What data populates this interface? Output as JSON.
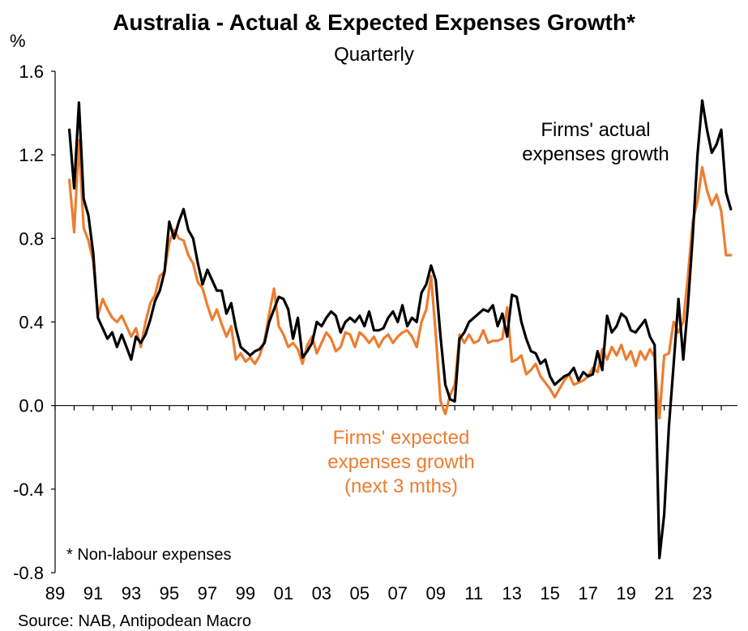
{
  "chart_data": {
    "type": "line",
    "title": "Australia - Actual & Expected Expenses Growth*",
    "subtitle": "Quarterly",
    "ylabel": "%",
    "ylim": [
      -0.8,
      1.6
    ],
    "xlim": [
      1989,
      2024.85
    ],
    "yticks": [
      "1.6",
      "1.2",
      "0.8",
      "0.4",
      "0.0",
      "-0.4",
      "-0.8"
    ],
    "ytick_values": [
      1.6,
      1.2,
      0.8,
      0.4,
      0.0,
      -0.4,
      -0.8
    ],
    "xticks": [
      "89",
      "91",
      "93",
      "95",
      "97",
      "99",
      "01",
      "03",
      "05",
      "07",
      "09",
      "11",
      "13",
      "15",
      "17",
      "19",
      "21",
      "23"
    ],
    "xtick_values": [
      1989,
      1991,
      1993,
      1995,
      1997,
      1999,
      2001,
      2003,
      2005,
      2007,
      2009,
      2011,
      2013,
      2015,
      2017,
      2019,
      2021,
      2023
    ],
    "grid": false,
    "series": [
      {
        "name": "Firms' actual expenses growth",
        "color": "#000000",
        "x": [
          1989.75,
          1990.0,
          1990.25,
          1990.5,
          1990.75,
          1991.0,
          1991.25,
          1991.5,
          1991.75,
          1992.0,
          1992.25,
          1992.5,
          1992.75,
          1993.0,
          1993.25,
          1993.5,
          1993.75,
          1994.0,
          1994.25,
          1994.5,
          1994.75,
          1995.0,
          1995.25,
          1995.5,
          1995.75,
          1996.0,
          1996.25,
          1996.5,
          1996.75,
          1997.0,
          1997.25,
          1997.5,
          1997.75,
          1998.0,
          1998.25,
          1998.5,
          1998.75,
          1999.0,
          1999.25,
          1999.5,
          1999.75,
          2000.0,
          2000.25,
          2000.5,
          2000.75,
          2001.0,
          2001.25,
          2001.5,
          2001.75,
          2002.0,
          2002.25,
          2002.5,
          2002.75,
          2003.0,
          2003.25,
          2003.5,
          2003.75,
          2004.0,
          2004.25,
          2004.5,
          2004.75,
          2005.0,
          2005.25,
          2005.5,
          2005.75,
          2006.0,
          2006.25,
          2006.5,
          2006.75,
          2007.0,
          2007.25,
          2007.5,
          2007.75,
          2008.0,
          2008.25,
          2008.5,
          2008.75,
          2009.0,
          2009.25,
          2009.5,
          2009.75,
          2010.0,
          2010.25,
          2010.5,
          2010.75,
          2011.0,
          2011.25,
          2011.5,
          2011.75,
          2012.0,
          2012.25,
          2012.5,
          2012.75,
          2013.0,
          2013.25,
          2013.5,
          2013.75,
          2014.0,
          2014.25,
          2014.5,
          2014.75,
          2015.0,
          2015.25,
          2015.5,
          2015.75,
          2016.0,
          2016.25,
          2016.5,
          2016.75,
          2017.0,
          2017.25,
          2017.5,
          2017.75,
          2018.0,
          2018.25,
          2018.5,
          2018.75,
          2019.0,
          2019.25,
          2019.5,
          2019.75,
          2020.0,
          2020.25,
          2020.5,
          2020.75,
          2021.0,
          2021.25,
          2021.5,
          2021.75,
          2022.0,
          2022.25,
          2022.5,
          2022.75,
          2023.0,
          2023.25,
          2023.5,
          2023.75,
          2024.0,
          2024.25,
          2024.5
        ],
        "values": [
          1.32,
          1.04,
          1.45,
          0.99,
          0.91,
          0.73,
          0.42,
          0.37,
          0.32,
          0.35,
          0.28,
          0.34,
          0.28,
          0.22,
          0.33,
          0.3,
          0.34,
          0.41,
          0.5,
          0.55,
          0.64,
          0.88,
          0.8,
          0.88,
          0.94,
          0.84,
          0.8,
          0.68,
          0.58,
          0.65,
          0.6,
          0.55,
          0.55,
          0.44,
          0.49,
          0.37,
          0.28,
          0.26,
          0.24,
          0.26,
          0.27,
          0.3,
          0.4,
          0.46,
          0.52,
          0.51,
          0.46,
          0.32,
          0.42,
          0.23,
          0.26,
          0.3,
          0.4,
          0.38,
          0.42,
          0.45,
          0.43,
          0.35,
          0.4,
          0.42,
          0.4,
          0.43,
          0.38,
          0.45,
          0.36,
          0.36,
          0.37,
          0.42,
          0.45,
          0.4,
          0.48,
          0.38,
          0.42,
          0.4,
          0.54,
          0.58,
          0.67,
          0.6,
          0.33,
          0.1,
          0.03,
          0.02,
          0.32,
          0.35,
          0.4,
          0.42,
          0.44,
          0.46,
          0.45,
          0.48,
          0.38,
          0.44,
          0.33,
          0.53,
          0.52,
          0.4,
          0.32,
          0.26,
          0.25,
          0.2,
          0.22,
          0.14,
          0.1,
          0.12,
          0.14,
          0.15,
          0.18,
          0.12,
          0.16,
          0.14,
          0.15,
          0.26,
          0.17,
          0.43,
          0.35,
          0.38,
          0.44,
          0.42,
          0.36,
          0.35,
          0.38,
          0.41,
          0.33,
          0.29,
          -0.73,
          -0.52,
          -0.1,
          0.2,
          0.51,
          0.22,
          0.48,
          0.81,
          1.2,
          1.46,
          1.32,
          1.21,
          1.25,
          1.32,
          1.02,
          0.94
        ]
      },
      {
        "name": "Firms' expected expenses growth (next 3 mths)",
        "color": "#ED7D31",
        "x": [
          1989.75,
          1990.0,
          1990.25,
          1990.5,
          1990.75,
          1991.0,
          1991.25,
          1991.5,
          1991.75,
          1992.0,
          1992.25,
          1992.5,
          1992.75,
          1993.0,
          1993.25,
          1993.5,
          1993.75,
          1994.0,
          1994.25,
          1994.5,
          1994.75,
          1995.0,
          1995.25,
          1995.5,
          1995.75,
          1996.0,
          1996.25,
          1996.5,
          1996.75,
          1997.0,
          1997.25,
          1997.5,
          1997.75,
          1998.0,
          1998.25,
          1998.5,
          1998.75,
          1999.0,
          1999.25,
          1999.5,
          1999.75,
          2000.0,
          2000.25,
          2000.5,
          2000.75,
          2001.0,
          2001.25,
          2001.5,
          2001.75,
          2002.0,
          2002.25,
          2002.5,
          2002.75,
          2003.0,
          2003.25,
          2003.5,
          2003.75,
          2004.0,
          2004.25,
          2004.5,
          2004.75,
          2005.0,
          2005.25,
          2005.5,
          2005.75,
          2006.0,
          2006.25,
          2006.5,
          2006.75,
          2007.0,
          2007.25,
          2007.5,
          2007.75,
          2008.0,
          2008.25,
          2008.5,
          2008.75,
          2009.0,
          2009.25,
          2009.5,
          2009.75,
          2010.0,
          2010.25,
          2010.5,
          2010.75,
          2011.0,
          2011.25,
          2011.5,
          2011.75,
          2012.0,
          2012.25,
          2012.5,
          2012.75,
          2013.0,
          2013.25,
          2013.5,
          2013.75,
          2014.0,
          2014.25,
          2014.5,
          2014.75,
          2015.0,
          2015.25,
          2015.5,
          2015.75,
          2016.0,
          2016.25,
          2016.5,
          2016.75,
          2017.0,
          2017.25,
          2017.5,
          2017.75,
          2018.0,
          2018.25,
          2018.5,
          2018.75,
          2019.0,
          2019.25,
          2019.5,
          2019.75,
          2020.0,
          2020.25,
          2020.5,
          2020.75,
          2021.0,
          2021.25,
          2021.5,
          2021.75,
          2022.0,
          2022.25,
          2022.5,
          2022.75,
          2023.0,
          2023.25,
          2023.5,
          2023.75,
          2024.0,
          2024.25,
          2024.5
        ],
        "values": [
          1.08,
          0.83,
          1.27,
          0.85,
          0.79,
          0.69,
          0.43,
          0.51,
          0.46,
          0.42,
          0.4,
          0.43,
          0.38,
          0.33,
          0.37,
          0.28,
          0.4,
          0.49,
          0.53,
          0.62,
          0.64,
          0.78,
          0.84,
          0.8,
          0.79,
          0.72,
          0.68,
          0.59,
          0.56,
          0.48,
          0.41,
          0.46,
          0.39,
          0.33,
          0.38,
          0.22,
          0.25,
          0.21,
          0.23,
          0.2,
          0.24,
          0.31,
          0.44,
          0.56,
          0.38,
          0.34,
          0.28,
          0.3,
          0.27,
          0.2,
          0.29,
          0.33,
          0.25,
          0.3,
          0.35,
          0.32,
          0.26,
          0.28,
          0.35,
          0.34,
          0.28,
          0.35,
          0.33,
          0.3,
          0.33,
          0.28,
          0.32,
          0.34,
          0.3,
          0.33,
          0.35,
          0.36,
          0.33,
          0.28,
          0.4,
          0.46,
          0.62,
          0.34,
          0.02,
          -0.04,
          0.05,
          0.1,
          0.34,
          0.3,
          0.34,
          0.3,
          0.31,
          0.36,
          0.3,
          0.31,
          0.31,
          0.32,
          0.47,
          0.21,
          0.22,
          0.24,
          0.15,
          0.17,
          0.2,
          0.14,
          0.11,
          0.08,
          0.04,
          0.08,
          0.12,
          0.15,
          0.1,
          0.11,
          0.12,
          0.14,
          0.18,
          0.16,
          0.27,
          0.22,
          0.28,
          0.24,
          0.29,
          0.22,
          0.26,
          0.19,
          0.26,
          0.22,
          0.27,
          0.23,
          -0.06,
          0.24,
          0.25,
          0.4,
          0.35,
          0.4,
          0.62,
          0.88,
          0.98,
          1.14,
          1.03,
          0.96,
          1.01,
          0.93,
          0.72,
          0.72
        ]
      }
    ],
    "annotations": {
      "actual_label": [
        "Firms' actual",
        "expenses growth"
      ],
      "expected_label": [
        "Firms' expected",
        "expenses growth",
        "(next 3 mths)"
      ],
      "footnote": "* Non-labour expenses"
    },
    "source": "Source: NAB, Antipodean Macro"
  }
}
